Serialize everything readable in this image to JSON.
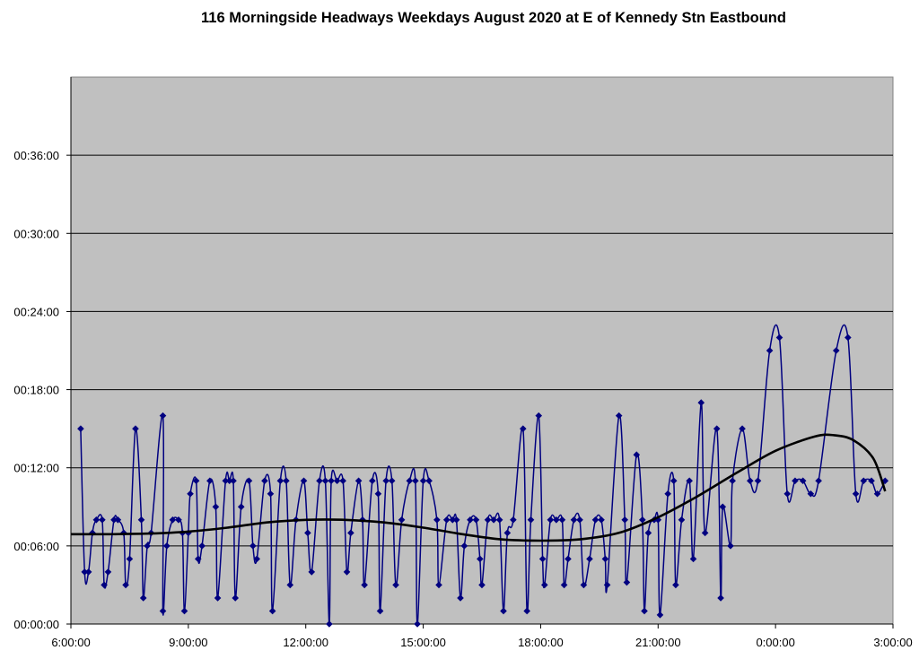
{
  "chart_data": {
    "type": "line",
    "title": "116 Morningside Headways Weekdays August 2020 at E of Kennedy Stn Eastbound",
    "xlabel": "",
    "ylabel": "",
    "x_unit": "hours after 6:00:00",
    "y_unit": "minutes",
    "xlim": [
      0,
      21
    ],
    "ylim": [
      0,
      42
    ],
    "x_ticks": [
      0,
      3,
      6,
      9,
      12,
      15,
      18,
      21
    ],
    "x_tick_labels": [
      "6:00:00",
      "9:00:00",
      "12:00:00",
      "15:00:00",
      "18:00:00",
      "21:00:00",
      "0:00:00",
      "3:00:00"
    ],
    "y_ticks": [
      0,
      6,
      12,
      18,
      24,
      30,
      36
    ],
    "y_tick_labels": [
      "00:00:00",
      "00:06:00",
      "00:12:00",
      "00:18:00",
      "00:24:00",
      "00:30:00",
      "00:36:00"
    ],
    "grid": "horizontal",
    "plot_background": "#c0c0c0",
    "series": [
      {
        "kind": "data",
        "color": "#000080",
        "marker": "diamond",
        "points": [
          [
            0.25,
            15
          ],
          [
            0.35,
            4
          ],
          [
            0.45,
            4
          ],
          [
            0.55,
            7
          ],
          [
            0.65,
            8
          ],
          [
            0.8,
            8
          ],
          [
            0.85,
            3
          ],
          [
            0.95,
            4
          ],
          [
            1.1,
            8
          ],
          [
            1.2,
            8
          ],
          [
            1.35,
            7
          ],
          [
            1.4,
            3
          ],
          [
            1.5,
            5
          ],
          [
            1.65,
            15
          ],
          [
            1.8,
            8
          ],
          [
            1.85,
            2
          ],
          [
            1.95,
            6
          ],
          [
            2.05,
            7
          ],
          [
            2.35,
            16
          ],
          [
            2.35,
            1
          ],
          [
            2.45,
            6
          ],
          [
            2.6,
            8
          ],
          [
            2.75,
            8
          ],
          [
            2.85,
            7
          ],
          [
            2.9,
            1
          ],
          [
            3.0,
            7
          ],
          [
            3.05,
            10
          ],
          [
            3.2,
            11
          ],
          [
            3.25,
            5
          ],
          [
            3.35,
            6
          ],
          [
            3.55,
            11
          ],
          [
            3.7,
            9
          ],
          [
            3.75,
            2
          ],
          [
            3.95,
            11
          ],
          [
            4.05,
            11
          ],
          [
            4.15,
            11
          ],
          [
            4.2,
            2
          ],
          [
            4.35,
            9
          ],
          [
            4.55,
            11
          ],
          [
            4.65,
            6
          ],
          [
            4.75,
            5
          ],
          [
            4.95,
            11
          ],
          [
            5.1,
            10
          ],
          [
            5.15,
            1
          ],
          [
            5.35,
            11
          ],
          [
            5.5,
            11
          ],
          [
            5.6,
            3
          ],
          [
            5.75,
            8
          ],
          [
            5.95,
            11
          ],
          [
            6.05,
            7
          ],
          [
            6.15,
            4
          ],
          [
            6.35,
            11
          ],
          [
            6.5,
            11
          ],
          [
            6.6,
            0
          ],
          [
            6.65,
            11
          ],
          [
            6.8,
            11
          ],
          [
            6.95,
            11
          ],
          [
            7.05,
            4
          ],
          [
            7.15,
            7
          ],
          [
            7.35,
            11
          ],
          [
            7.45,
            8
          ],
          [
            7.5,
            3
          ],
          [
            7.7,
            11
          ],
          [
            7.85,
            10
          ],
          [
            7.9,
            1
          ],
          [
            8.05,
            11
          ],
          [
            8.2,
            11
          ],
          [
            8.3,
            3
          ],
          [
            8.45,
            8
          ],
          [
            8.65,
            11
          ],
          [
            8.8,
            11
          ],
          [
            8.85,
            0
          ],
          [
            9.0,
            11
          ],
          [
            9.15,
            11
          ],
          [
            9.35,
            8
          ],
          [
            9.4,
            3
          ],
          [
            9.6,
            8
          ],
          [
            9.75,
            8
          ],
          [
            9.85,
            8
          ],
          [
            9.95,
            2
          ],
          [
            10.05,
            6
          ],
          [
            10.2,
            8
          ],
          [
            10.35,
            8
          ],
          [
            10.45,
            5
          ],
          [
            10.5,
            3
          ],
          [
            10.65,
            8
          ],
          [
            10.8,
            8
          ],
          [
            10.95,
            8
          ],
          [
            11.05,
            1
          ],
          [
            11.15,
            7
          ],
          [
            11.3,
            8
          ],
          [
            11.55,
            15
          ],
          [
            11.65,
            1
          ],
          [
            11.75,
            8
          ],
          [
            11.95,
            16
          ],
          [
            12.05,
            5
          ],
          [
            12.1,
            3
          ],
          [
            12.25,
            8
          ],
          [
            12.4,
            8
          ],
          [
            12.55,
            8
          ],
          [
            12.6,
            3
          ],
          [
            12.7,
            5
          ],
          [
            12.85,
            8
          ],
          [
            13.0,
            8
          ],
          [
            13.1,
            3
          ],
          [
            13.25,
            5
          ],
          [
            13.4,
            8
          ],
          [
            13.55,
            8
          ],
          [
            13.65,
            5
          ],
          [
            13.7,
            3
          ],
          [
            14.0,
            16
          ],
          [
            14.15,
            8
          ],
          [
            14.2,
            3.2
          ],
          [
            14.45,
            13
          ],
          [
            14.6,
            8
          ],
          [
            14.65,
            1
          ],
          [
            14.75,
            7
          ],
          [
            14.9,
            8
          ],
          [
            15.0,
            8
          ],
          [
            15.05,
            0.7
          ],
          [
            15.25,
            10
          ],
          [
            15.4,
            11
          ],
          [
            15.45,
            3
          ],
          [
            15.6,
            8
          ],
          [
            15.8,
            11
          ],
          [
            15.9,
            5
          ],
          [
            16.1,
            17
          ],
          [
            16.2,
            7
          ],
          [
            16.5,
            15
          ],
          [
            16.6,
            2
          ],
          [
            16.65,
            9
          ],
          [
            16.85,
            6
          ],
          [
            16.9,
            11
          ],
          [
            17.15,
            15
          ],
          [
            17.35,
            11
          ],
          [
            17.55,
            11
          ],
          [
            17.85,
            21
          ],
          [
            18.1,
            22
          ],
          [
            18.3,
            10
          ],
          [
            18.5,
            11
          ],
          [
            18.7,
            11
          ],
          [
            18.9,
            10
          ],
          [
            19.1,
            11
          ],
          [
            19.55,
            21
          ],
          [
            19.85,
            22
          ],
          [
            20.05,
            10
          ],
          [
            20.25,
            11
          ],
          [
            20.45,
            11
          ],
          [
            20.6,
            10
          ],
          [
            20.8,
            11
          ]
        ]
      },
      {
        "kind": "trend",
        "color": "#000000",
        "points": [
          [
            0,
            6.9
          ],
          [
            1,
            6.9
          ],
          [
            2,
            6.95
          ],
          [
            3,
            7.1
          ],
          [
            4,
            7.4
          ],
          [
            5,
            7.8
          ],
          [
            6,
            8.0
          ],
          [
            7,
            8.0
          ],
          [
            8,
            7.8
          ],
          [
            9,
            7.4
          ],
          [
            10,
            6.9
          ],
          [
            11,
            6.5
          ],
          [
            12,
            6.4
          ],
          [
            13,
            6.5
          ],
          [
            14,
            7.0
          ],
          [
            15,
            8.2
          ],
          [
            16,
            9.8
          ],
          [
            17,
            11.6
          ],
          [
            18,
            13.3
          ],
          [
            19,
            14.4
          ],
          [
            19.5,
            14.5
          ],
          [
            20,
            14.1
          ],
          [
            20.5,
            12.7
          ],
          [
            20.8,
            10.2
          ]
        ]
      }
    ]
  }
}
